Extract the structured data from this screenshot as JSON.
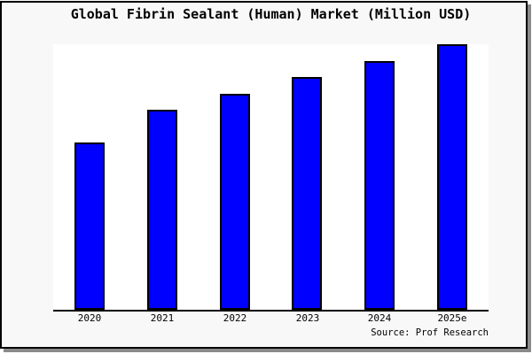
{
  "figure": {
    "title": "Global Fibrin Sealant (Human) Market (Million USD)",
    "source": "Source: Prof Research"
  },
  "colors": {
    "bar_fill": "#0000fe",
    "bar_border": "#000000",
    "figure_bg": "#f8f8f8",
    "plot_bg": "#ffffff",
    "frame_border": "#000000",
    "frame_shadow": "#8a8a8a",
    "text": "#000000"
  },
  "chart_data": {
    "type": "bar",
    "title": "Global Fibrin Sealant (Human) Market (Million USD)",
    "categories": [
      "2020",
      "2021",
      "2022",
      "2023",
      "2024",
      "2025e"
    ],
    "values": [
      63,
      75.3,
      81.3,
      87.7,
      93.7,
      100
    ],
    "xlabel": "",
    "ylabel": "",
    "ylim": [
      0,
      100
    ],
    "grid": false,
    "legend": false,
    "value_labels_visible": false,
    "note": "Chart shows no numeric axis or data labels; values are relative bar heights normalized so the 2025e bar (which reaches the top of the plot) equals 100.",
    "bar_color": "#0000fe",
    "source": "Source: Prof Research"
  }
}
